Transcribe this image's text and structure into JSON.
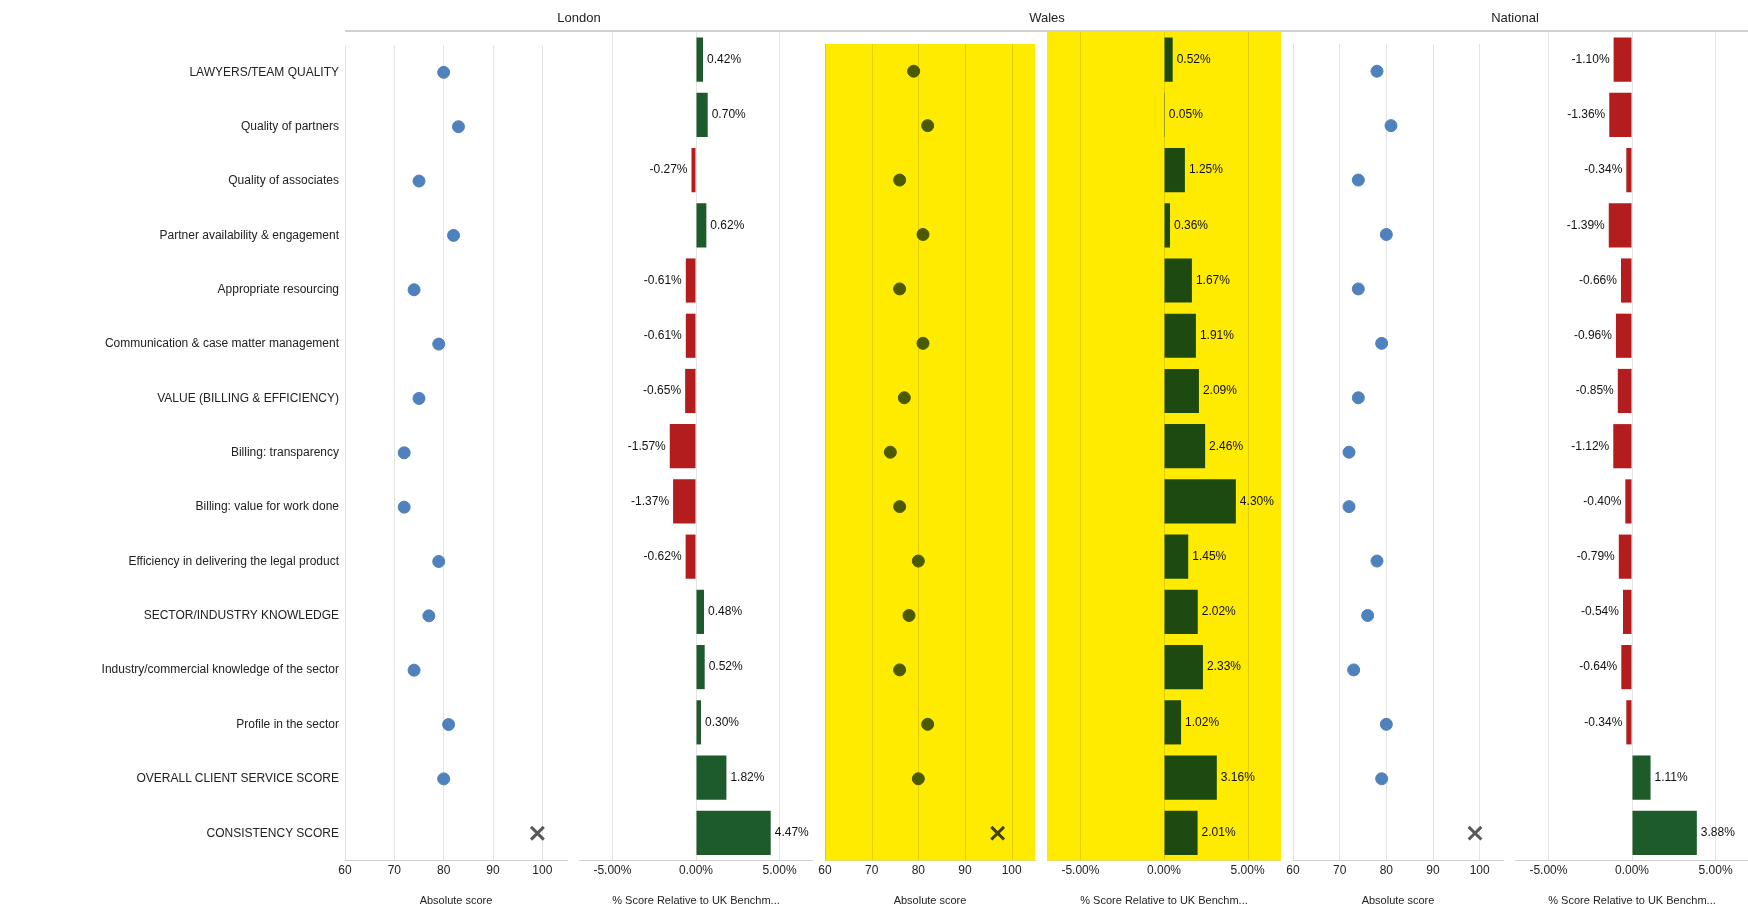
{
  "chart_data": [
    {
      "type": "scatter",
      "title": "London",
      "orientation": "horizontal",
      "xlabel": "Absolute score",
      "marker": "circle",
      "grid": "x",
      "categories": [
        "LAWYERS/TEAM QUALITY",
        "Quality of partners",
        "Quality of associates",
        "Partner availability & engagement",
        "Appropriate resourcing",
        "Communication & case matter management",
        "VALUE (BILLING & EFFICIENCY)",
        "Billing: transparency",
        "Billing: value for work done",
        "Efficiency in delivering the legal product",
        "SECTOR/INDUSTRY KNOWLEDGE",
        "Industry/commercial knowledge of the sector",
        "Profile in the sector",
        "OVERALL CLIENT SERVICE SCORE",
        "CONSISTENCY SCORE"
      ],
      "series": [
        {
          "color": "#4f81bd",
          "values": [
            80,
            83,
            75,
            82,
            74,
            79,
            75,
            72,
            72,
            79,
            77,
            74,
            81,
            80,
            null
          ]
        },
        {
          "color": "#595959",
          "marker": "cross",
          "values": [
            null,
            null,
            null,
            null,
            null,
            null,
            null,
            null,
            null,
            null,
            null,
            null,
            null,
            null,
            99
          ]
        }
      ],
      "xlim": [
        60,
        105
      ],
      "xticks": [
        60,
        70,
        80,
        90,
        100
      ]
    },
    {
      "type": "bar",
      "orientation": "horizontal",
      "xlabel": "% Score Relative to UK Benchm...",
      "grid": "x",
      "tick_labels": "x",
      "categories": [
        null,
        null,
        null,
        null,
        null,
        null,
        null,
        null,
        null,
        null,
        null,
        null,
        null,
        null,
        null
      ],
      "values": [
        0.42,
        0.7,
        -0.27,
        0.62,
        -0.61,
        -0.61,
        -0.65,
        -1.57,
        -1.37,
        -0.62,
        0.48,
        0.52,
        0.3,
        1.82,
        4.47
      ],
      "value_labels": [
        "0.42%",
        "0.70%",
        "-0.27%",
        "0.62%",
        "-0.61%",
        "-0.61%",
        "-0.65%",
        "-1.57%",
        "-1.37%",
        "-0.62%",
        "0.48%",
        "0.52%",
        "0.30%",
        "1.82%",
        "4.47%"
      ],
      "colors": [
        "#1e5b2b",
        "#1e5b2b",
        "#b41d1d",
        "#1e5b2b",
        "#b41d1d",
        "#b41d1d",
        "#b41d1d",
        "#b41d1d",
        "#b41d1d",
        "#b41d1d",
        "#1e5b2b",
        "#1e5b2b",
        "#1e5b2b",
        "#1e5b2b",
        "#1e5b2b"
      ],
      "xlim": [
        -7,
        7
      ],
      "xticks": [
        {
          "value": -5,
          "label": "-5.00%"
        },
        {
          "value": 0,
          "label": "0.00%"
        },
        {
          "value": 5,
          "label": "5.00%"
        }
      ]
    },
    {
      "type": "scatter",
      "title": "Wales",
      "orientation": "horizontal",
      "xlabel": "Absolute score",
      "marker": "circle",
      "grid": "x",
      "tick_labels": "x",
      "categories": [
        null,
        null,
        null,
        null,
        null,
        null,
        null,
        null,
        null,
        null,
        null,
        null,
        null,
        null,
        null
      ],
      "series": [
        {
          "color": "#4b5a00",
          "values": [
            79,
            82,
            76,
            81,
            76,
            81,
            77,
            74,
            76,
            80,
            78,
            76,
            82,
            80,
            null
          ]
        },
        {
          "color": "#404000",
          "marker": "cross",
          "values": [
            null,
            null,
            null,
            null,
            null,
            null,
            null,
            null,
            null,
            null,
            null,
            null,
            null,
            null,
            97
          ]
        }
      ],
      "bands": [
        {
          "axis": "x",
          "from": 60,
          "to": 105,
          "color": "#ffeb00"
        }
      ],
      "xlim": [
        60,
        105
      ],
      "xticks": [
        60,
        70,
        80,
        90,
        100
      ]
    },
    {
      "type": "bar",
      "orientation": "horizontal",
      "xlabel": "% Score Relative to UK Benchm...",
      "grid": "x",
      "tick_labels": "x",
      "categories": [
        null,
        null,
        null,
        null,
        null,
        null,
        null,
        null,
        null,
        null,
        null,
        null,
        null,
        null,
        null
      ],
      "values": [
        0.52,
        0.05,
        1.25,
        0.36,
        1.67,
        1.91,
        2.09,
        2.46,
        4.3,
        1.45,
        2.02,
        2.33,
        1.02,
        3.16,
        2.01
      ],
      "value_labels": [
        "0.52%",
        "0.05%",
        "1.25%",
        "0.36%",
        "1.67%",
        "1.91%",
        "2.09%",
        "2.46%",
        "4.30%",
        "1.45%",
        "2.02%",
        "2.33%",
        "1.02%",
        "3.16%",
        "2.01%"
      ],
      "colors": [
        "#1c4a10",
        "#1c4a10",
        "#1c4a10",
        "#1c4a10",
        "#1c4a10",
        "#1c4a10",
        "#1c4a10",
        "#1c4a10",
        "#1c4a10",
        "#1c4a10",
        "#1c4a10",
        "#1c4a10",
        "#1c4a10",
        "#1c4a10",
        "#1c4a10"
      ],
      "bands": [
        {
          "axis": "x",
          "from": -7,
          "to": 7,
          "color": "#ffeb00"
        }
      ],
      "xlim": [
        -7,
        7
      ],
      "xticks": [
        {
          "value": -5,
          "label": "-5.00%"
        },
        {
          "value": 0,
          "label": "0.00%"
        },
        {
          "value": 5,
          "label": "5.00%"
        }
      ]
    },
    {
      "type": "scatter",
      "title": "National",
      "orientation": "horizontal",
      "xlabel": "Absolute score",
      "marker": "circle",
      "grid": "x",
      "tick_labels": "x",
      "categories": [
        null,
        null,
        null,
        null,
        null,
        null,
        null,
        null,
        null,
        null,
        null,
        null,
        null,
        null,
        null
      ],
      "series": [
        {
          "color": "#4f81bd",
          "values": [
            78,
            81,
            74,
            80,
            74,
            79,
            74,
            72,
            72,
            78,
            76,
            73,
            80,
            79,
            null
          ]
        },
        {
          "color": "#595959",
          "marker": "cross",
          "values": [
            null,
            null,
            null,
            null,
            null,
            null,
            null,
            null,
            null,
            null,
            null,
            null,
            null,
            null,
            99
          ]
        }
      ],
      "xlim": [
        60,
        105
      ],
      "xticks": [
        60,
        70,
        80,
        90,
        100
      ]
    },
    {
      "type": "bar",
      "orientation": "horizontal",
      "xlabel": "% Score Relative to UK Benchm...",
      "grid": "x",
      "tick_labels": "x",
      "categories": [
        null,
        null,
        null,
        null,
        null,
        null,
        null,
        null,
        null,
        null,
        null,
        null,
        null,
        null,
        null
      ],
      "values": [
        -1.1,
        -1.36,
        -0.34,
        -1.39,
        -0.66,
        -0.96,
        -0.85,
        -1.12,
        -0.4,
        -0.79,
        -0.54,
        -0.64,
        -0.34,
        1.11,
        3.88
      ],
      "value_labels": [
        "-1.10%",
        "-1.36%",
        "-0.34%",
        "-1.39%",
        "-0.66%",
        "-0.96%",
        "-0.85%",
        "-1.12%",
        "-0.40%",
        "-0.79%",
        "-0.54%",
        "-0.64%",
        "-0.34%",
        "1.11%",
        "3.88%"
      ],
      "colors": [
        "#b41d1d",
        "#b41d1d",
        "#b41d1d",
        "#b41d1d",
        "#b41d1d",
        "#b41d1d",
        "#b41d1d",
        "#b41d1d",
        "#b41d1d",
        "#b41d1d",
        "#b41d1d",
        "#b41d1d",
        "#b41d1d",
        "#1e5b2b",
        "#1e5b2b"
      ],
      "xlim": [
        -7,
        7
      ],
      "xticks": [
        {
          "value": -5,
          "label": "-5.00%"
        },
        {
          "value": 0,
          "label": "0.00%"
        },
        {
          "value": 5,
          "label": "5.00%"
        }
      ]
    }
  ]
}
